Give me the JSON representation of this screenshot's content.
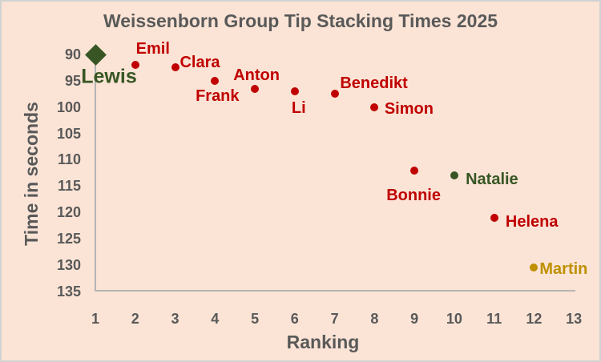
{
  "window": {
    "background_color": "#fbe4d6",
    "border_color": "#d2d2d2",
    "text_color": "#595959",
    "axis_line_color": "#b5b5b5"
  },
  "chart_data": {
    "type": "scatter",
    "title": "Weissenborn Group Tip Stacking Times 2025",
    "xlabel": "Ranking",
    "ylabel": "Time in seconds",
    "xlim": [
      1,
      13
    ],
    "ylim": [
      90,
      135
    ],
    "y_axis_reversed": true,
    "grid": false,
    "legend": "none",
    "x_ticks": [
      1,
      2,
      3,
      4,
      5,
      6,
      7,
      8,
      9,
      10,
      11,
      12,
      13
    ],
    "y_ticks": [
      90,
      95,
      100,
      105,
      110,
      115,
      120,
      125,
      130,
      135
    ],
    "point_colors": {
      "default_red": "#c00000",
      "highlight_green": "#375623",
      "highlight_gold": "#bf9000"
    },
    "points": [
      {
        "name": "Lewis",
        "rank": 1,
        "time": 90,
        "color": "#375623",
        "marker": "diamond",
        "label_offset": [
          17,
          28
        ],
        "label_large": true
      },
      {
        "name": "Emil",
        "rank": 2,
        "time": 92,
        "color": "#c00000",
        "marker": "circle",
        "label_offset": [
          22,
          -20
        ]
      },
      {
        "name": "Clara",
        "rank": 3,
        "time": 92.5,
        "color": "#c00000",
        "marker": "circle",
        "label_offset": [
          31,
          -6
        ]
      },
      {
        "name": "Frank",
        "rank": 4,
        "time": 95,
        "color": "#c00000",
        "marker": "circle",
        "label_offset": [
          3,
          19
        ]
      },
      {
        "name": "Anton",
        "rank": 5,
        "time": 96.5,
        "color": "#c00000",
        "marker": "circle",
        "label_offset": [
          2,
          -17
        ]
      },
      {
        "name": "Li",
        "rank": 6,
        "time": 97,
        "color": "#c00000",
        "marker": "circle",
        "label_offset": [
          5,
          21
        ]
      },
      {
        "name": "Benedikt",
        "rank": 7,
        "time": 97.5,
        "color": "#c00000",
        "marker": "circle",
        "label_offset": [
          49,
          -13
        ]
      },
      {
        "name": "Simon",
        "rank": 8,
        "time": 100,
        "color": "#c00000",
        "marker": "circle",
        "label_offset": [
          43,
          2
        ]
      },
      {
        "name": "Bonnie",
        "rank": 9,
        "time": 112,
        "color": "#c00000",
        "marker": "circle",
        "label_offset": [
          -1,
          31
        ]
      },
      {
        "name": "Natalie",
        "rank": 10,
        "time": 113,
        "color": "#375623",
        "marker": "circle",
        "label_offset": [
          47,
          5
        ]
      },
      {
        "name": "Helena",
        "rank": 11,
        "time": 121,
        "color": "#c00000",
        "marker": "circle",
        "label_offset": [
          47,
          5
        ]
      },
      {
        "name": "Martin",
        "rank": 12,
        "time": 130.5,
        "color": "#bf9000",
        "marker": "circle",
        "label_offset": [
          37,
          2
        ]
      }
    ]
  }
}
